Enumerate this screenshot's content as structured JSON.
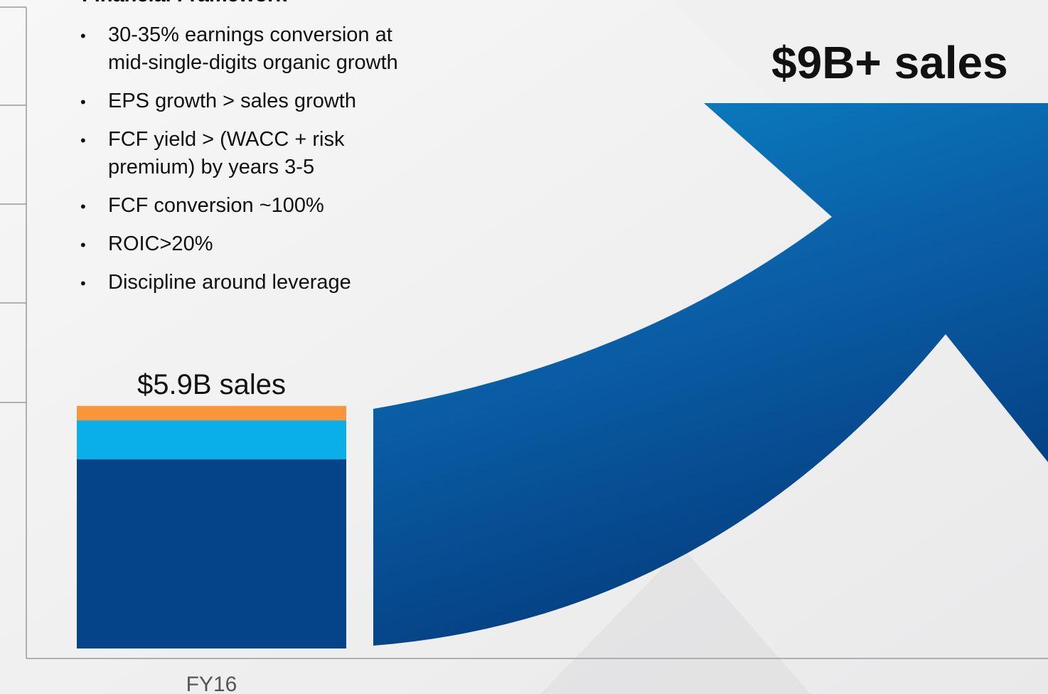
{
  "chart_data": {
    "type": "bar",
    "title": "Financial Framework",
    "bullets": [
      [
        "30-35% earnings conversion at",
        "mid-single-digits organic growth"
      ],
      [
        "EPS growth > sales growth"
      ],
      [
        "FCF yield > (WACC + risk",
        "premium) by years 3-5"
      ],
      [
        "FCF conversion ~100%"
      ],
      [
        "ROIC>20%"
      ],
      [
        "Discipline around leverage"
      ]
    ],
    "categories": [
      "FY16"
    ],
    "series": [
      {
        "color": "#054488",
        "values": [
          4.6
        ]
      },
      {
        "color": "#0aaee8",
        "values": [
          0.95
        ]
      },
      {
        "color": "#fa963a",
        "values": [
          0.35
        ]
      }
    ],
    "bar_annotation": "$5.9B sales",
    "arrow_annotation": "$9B+ sales",
    "ylim": [
      0,
      15.6
    ]
  }
}
